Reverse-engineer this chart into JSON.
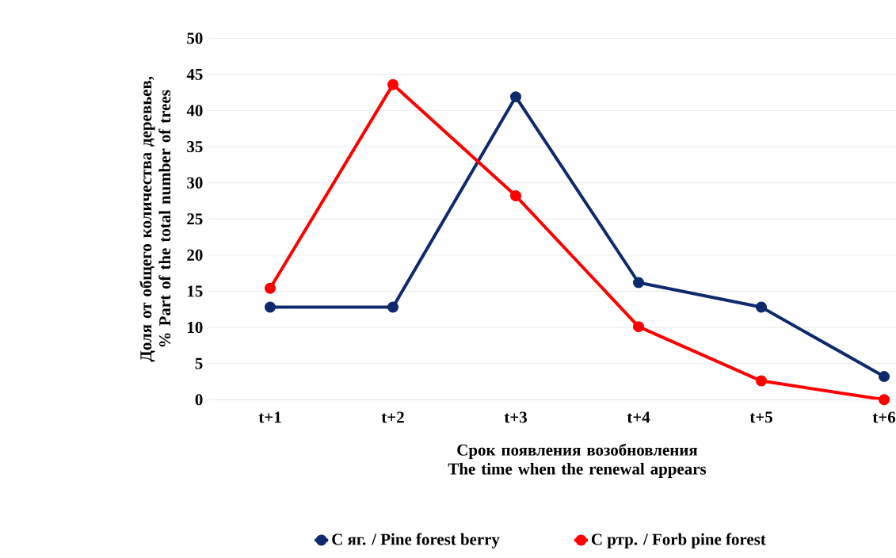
{
  "chart_data": {
    "type": "line",
    "xlabel": "Срок появления возобновления The time when the renewal appears",
    "ylabel": "Доля от общего количества деревьев, % Part of the total number of trees",
    "categories": [
      "t+1",
      "t+2",
      "t+3",
      "t+4",
      "t+5",
      "t+6"
    ],
    "series": [
      {
        "name": "С яг. / Pine forest berry",
        "color": "#0e2a6e",
        "values": [
          12.8,
          12.8,
          41.9,
          16.2,
          12.8,
          3.2
        ]
      },
      {
        "name": "С ртр. / Forb pine forest",
        "color": "#ff0000",
        "values": [
          15.4,
          43.6,
          28.2,
          10.1,
          2.6,
          0
        ]
      }
    ],
    "ylim": [
      0,
      50
    ],
    "yticks": [
      0,
      5,
      10,
      15,
      20,
      25,
      30,
      35,
      40,
      45,
      50
    ],
    "grid": "y",
    "legend": "bottom",
    "marker": "circle",
    "line_style": "solid"
  }
}
